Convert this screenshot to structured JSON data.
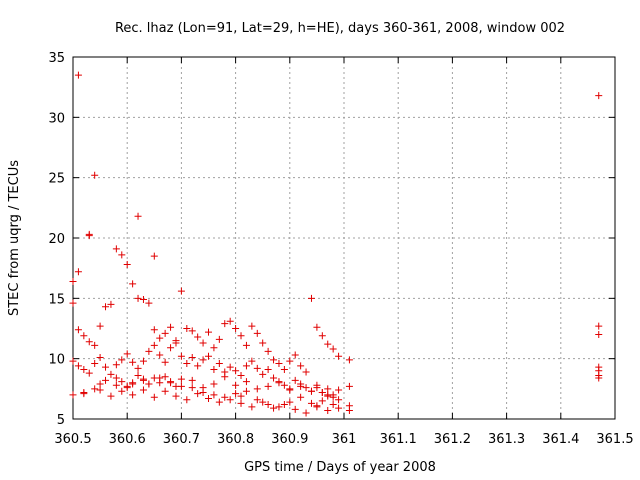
{
  "chart_data": {
    "type": "scatter",
    "title": "Rec. lhaz (Lon=91, Lat=29, h=HE), days 360-361, 2008, window 002",
    "xlabel": "GPS time / Days of year 2008",
    "ylabel": "STEC from uqrg / TECUs",
    "xlim": [
      360.5,
      361.5
    ],
    "ylim": [
      5,
      35
    ],
    "xticks": [
      360.5,
      360.6,
      360.7,
      360.8,
      360.9,
      361,
      361.1,
      361.2,
      361.3,
      361.4,
      361.5
    ],
    "xtick_labels": [
      "360.5",
      "360.6",
      "360.7",
      "360.8",
      "360.9",
      "361",
      "361.1",
      "361.2",
      "361.3",
      "361.4",
      "361.5"
    ],
    "yticks": [
      5,
      10,
      15,
      20,
      25,
      30,
      35
    ],
    "ytick_labels": [
      "5",
      "10",
      "15",
      "20",
      "25",
      "30",
      "35"
    ],
    "grid": true,
    "marker": "+",
    "color": "#e00000",
    "series": [
      {
        "x": [
          360.51,
          360.53,
          360.54,
          360.53,
          360.62,
          360.65,
          360.51,
          360.5,
          360.5,
          360.51,
          360.52,
          360.53,
          360.54,
          360.55,
          360.56,
          360.57,
          360.58,
          360.59,
          360.6,
          360.61,
          360.62,
          360.63,
          360.64,
          360.65,
          360.66,
          360.67,
          360.68,
          360.69,
          360.7,
          360.71,
          360.72,
          360.73,
          360.74,
          360.75,
          360.76,
          360.77,
          360.78,
          360.79,
          360.8,
          360.81,
          360.82,
          360.83,
          360.84,
          360.85,
          360.86,
          360.87,
          360.88,
          360.89,
          360.9,
          360.91,
          360.92,
          360.93,
          360.94,
          360.95,
          360.96,
          360.97,
          360.98,
          360.99,
          361.01,
          360.5,
          360.51,
          360.52,
          360.53,
          360.54,
          360.55,
          360.56,
          360.57,
          360.58,
          360.59,
          360.6,
          360.61,
          360.62,
          360.63,
          360.64,
          360.65,
          360.66,
          360.67,
          360.68,
          360.69,
          360.7,
          360.71,
          360.72,
          360.73,
          360.74,
          360.75,
          360.76,
          360.77,
          360.78,
          360.79,
          360.8,
          360.81,
          360.82,
          360.83,
          360.84,
          360.85,
          360.86,
          360.87,
          360.88,
          360.89,
          360.9,
          360.91,
          360.92,
          360.93,
          360.94,
          360.95,
          360.96,
          360.97,
          360.98,
          360.99,
          361.01,
          360.52,
          360.54,
          360.55,
          360.56,
          360.58,
          360.6,
          360.61,
          360.62,
          360.63,
          360.64,
          360.65,
          360.66,
          360.67,
          360.68,
          360.69,
          360.7,
          360.72,
          360.74,
          360.76,
          360.78,
          360.8,
          360.81,
          360.82,
          360.84,
          360.86,
          360.88,
          360.9,
          360.92,
          360.94,
          360.95,
          360.96,
          360.97,
          360.98,
          360.99,
          361.01,
          360.5,
          360.52,
          360.55,
          360.57,
          360.59,
          360.61,
          360.63,
          360.65,
          360.67,
          360.69,
          360.71,
          360.73,
          360.75,
          360.77,
          360.79,
          360.81,
          360.83,
          360.85,
          360.87,
          360.89,
          360.91,
          360.93,
          360.95,
          360.97,
          360.99,
          361.01,
          360.58,
          360.59,
          360.6,
          360.61,
          360.63,
          360.64,
          360.66,
          360.68,
          360.7,
          360.72,
          360.74,
          360.76,
          360.78,
          360.8,
          360.82,
          360.84,
          360.86,
          360.88,
          360.9,
          360.92,
          360.94,
          360.95,
          360.96,
          360.97,
          360.98,
          361.47,
          361.47,
          361.47,
          361.47,
          361.47,
          361.47,
          361.47
        ],
        "y": [
          33.5,
          20.3,
          25.2,
          20.2,
          21.8,
          18.5,
          17.2,
          16.4,
          14.6,
          12.4,
          11.9,
          11.4,
          11.1,
          12.7,
          14.3,
          14.5,
          19.1,
          18.6,
          17.8,
          16.2,
          15.0,
          14.9,
          14.6,
          12.4,
          11.7,
          12.1,
          12.6,
          11.5,
          15.6,
          12.5,
          12.3,
          11.8,
          11.3,
          12.2,
          10.9,
          11.6,
          12.9,
          13.1,
          12.5,
          11.9,
          11.1,
          12.7,
          12.1,
          11.3,
          10.6,
          9.9,
          9.6,
          9.1,
          9.8,
          10.3,
          9.4,
          8.9,
          15.0,
          12.6,
          11.9,
          11.2,
          10.8,
          10.2,
          9.9,
          9.8,
          9.4,
          9.1,
          8.8,
          9.6,
          10.1,
          9.3,
          8.7,
          9.5,
          9.9,
          10.4,
          9.7,
          9.2,
          9.8,
          10.6,
          11.1,
          10.3,
          9.7,
          10.9,
          11.3,
          10.2,
          9.6,
          10.1,
          9.4,
          9.9,
          10.2,
          9.1,
          9.6,
          8.9,
          9.3,
          9.0,
          8.6,
          9.4,
          9.8,
          9.2,
          8.7,
          9.1,
          8.4,
          8.1,
          7.8,
          7.5,
          8.2,
          7.9,
          7.6,
          7.3,
          7.8,
          7.2,
          7.5,
          7.0,
          7.4,
          7.7,
          7.1,
          7.5,
          7.9,
          8.2,
          8.4,
          7.7,
          7.9,
          8.6,
          8.2,
          7.9,
          8.4,
          8.0,
          8.5,
          8.1,
          7.7,
          8.3,
          7.6,
          7.2,
          7.0,
          6.8,
          7.1,
          6.9,
          7.3,
          6.6,
          6.2,
          6.0,
          6.4,
          6.8,
          6.3,
          6.1,
          6.5,
          6.9,
          6.2,
          6.6,
          6.1,
          7.0,
          7.2,
          7.4,
          6.9,
          7.3,
          7.0,
          7.4,
          6.8,
          7.3,
          6.9,
          6.6,
          7.1,
          6.7,
          6.4,
          6.6,
          6.3,
          6.0,
          6.4,
          5.9,
          6.2,
          5.8,
          5.5,
          6.0,
          5.7,
          5.9,
          5.7,
          7.8,
          8.1,
          7.6,
          8.0,
          8.3,
          7.9,
          8.4,
          8.0,
          7.7,
          8.2,
          7.6,
          7.9,
          8.5,
          7.8,
          8.1,
          7.5,
          7.7,
          8.0,
          7.4,
          7.7,
          7.3,
          7.6,
          7.2,
          7.0,
          6.8,
          31.8,
          12.7,
          12.0,
          9.3,
          9.0,
          8.4,
          8.6
        ]
      }
    ]
  }
}
